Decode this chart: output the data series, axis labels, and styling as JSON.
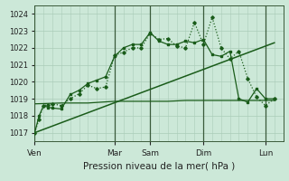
{
  "bg_color": "#cce8d8",
  "grid_color": "#aaccb8",
  "line_color": "#1a5c1a",
  "xlabel": "Pression niveau de la mer( hPa )",
  "ylim": [
    1016.5,
    1024.5
  ],
  "yticks": [
    1017,
    1018,
    1019,
    1020,
    1021,
    1022,
    1023,
    1024
  ],
  "day_labels": [
    "Ven",
    "Mar",
    "Sam",
    "Dim",
    "Lun"
  ],
  "day_positions": [
    0,
    9,
    13,
    19,
    26
  ],
  "xlim": [
    0,
    28
  ],
  "series1_x": [
    0,
    0.5,
    1,
    1.5,
    2,
    3,
    4,
    5,
    6,
    7,
    8,
    9,
    10,
    11,
    12,
    13,
    14,
    15,
    16,
    17,
    18,
    19,
    20,
    21,
    22,
    23,
    24,
    25,
    26,
    27
  ],
  "series1_y": [
    1017.0,
    1017.8,
    1018.6,
    1018.65,
    1018.7,
    1018.6,
    1019.0,
    1019.3,
    1019.8,
    1019.6,
    1019.7,
    1021.55,
    1021.75,
    1022.0,
    1022.0,
    1022.85,
    1022.5,
    1022.55,
    1022.1,
    1022.0,
    1023.5,
    1022.2,
    1023.8,
    1022.0,
    1021.35,
    1021.8,
    1020.2,
    1019.1,
    1018.6,
    1019.0
  ],
  "series2_x": [
    0,
    0.5,
    1,
    1.5,
    2,
    3,
    4,
    5,
    6,
    7,
    8,
    9,
    10,
    11,
    12,
    13,
    14,
    15,
    16,
    17,
    18,
    19,
    20,
    21,
    22,
    23,
    24,
    25,
    26,
    27
  ],
  "series2_y": [
    1017.0,
    1018.0,
    1018.6,
    1018.5,
    1018.45,
    1018.4,
    1019.25,
    1019.5,
    1019.9,
    1020.1,
    1020.3,
    1021.5,
    1022.0,
    1022.2,
    1022.2,
    1022.9,
    1022.4,
    1022.2,
    1022.2,
    1022.4,
    1022.3,
    1022.5,
    1021.6,
    1021.5,
    1021.8,
    1019.0,
    1018.8,
    1019.6,
    1019.0,
    1019.0
  ],
  "series3_x": [
    0,
    3,
    6,
    9,
    12,
    13,
    15,
    17,
    19,
    21,
    23,
    25,
    27
  ],
  "series3_y": [
    1018.7,
    1018.75,
    1018.75,
    1018.85,
    1018.85,
    1018.85,
    1018.85,
    1018.9,
    1018.9,
    1018.9,
    1018.9,
    1018.9,
    1018.9
  ],
  "trend_x": [
    0,
    27
  ],
  "trend_y": [
    1017.0,
    1022.3
  ]
}
